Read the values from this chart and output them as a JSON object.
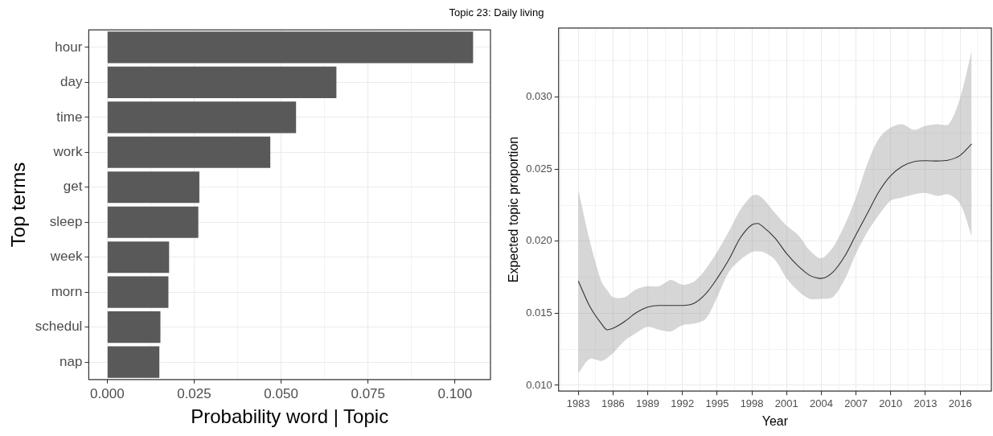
{
  "chart_data": [
    {
      "type": "bar",
      "title": "Topic 23: Daily living",
      "orientation": "horizontal",
      "xlabel": "Probability word | Topic",
      "ylabel": "Top terms",
      "categories": [
        "hour",
        "day",
        "time",
        "work",
        "get",
        "sleep",
        "week",
        "morn",
        "schedul",
        "nap"
      ],
      "values": [
        0.1052,
        0.0659,
        0.0543,
        0.0469,
        0.0265,
        0.0262,
        0.0178,
        0.0176,
        0.0153,
        0.015
      ],
      "color": "#595959",
      "xlim": [
        -0.0053,
        0.1102
      ],
      "xticks": [
        {
          "value": 0,
          "label": "0.000"
        },
        {
          "value": 0.0125,
          "label": null
        },
        {
          "value": 0.025,
          "label": "0.025"
        },
        {
          "value": 0.0375,
          "label": null
        },
        {
          "value": 0.05,
          "label": "0.050"
        },
        {
          "value": 0.0625,
          "label": null
        },
        {
          "value": 0.075,
          "label": "0.075"
        },
        {
          "value": 0.0875,
          "label": null
        },
        {
          "value": 0.1,
          "label": "0.100"
        }
      ],
      "grid": true,
      "legend": false
    },
    {
      "type": "line",
      "xlabel": "Year",
      "ylabel": "Expected topic proportion",
      "x": [
        1983,
        1984,
        1985,
        1985.5,
        1986,
        1987,
        1988,
        1989,
        1990,
        1991,
        1992,
        1993,
        1994,
        1995,
        1996,
        1997,
        1998,
        1998.5,
        1999,
        2000,
        2001,
        2002,
        2003,
        2004,
        2005,
        2006,
        2007,
        2008,
        2009,
        2010,
        2011,
        2012,
        2013,
        2014,
        2015,
        2016,
        2017
      ],
      "series": [
        {
          "color": "#333333",
          "values": [
            0.01724,
            0.01547,
            0.01428,
            0.01385,
            0.01396,
            0.01443,
            0.01504,
            0.01543,
            0.01554,
            0.01554,
            0.01554,
            0.01569,
            0.01634,
            0.01742,
            0.01871,
            0.02023,
            0.02114,
            0.02124,
            0.02098,
            0.02023,
            0.01915,
            0.01828,
            0.01763,
            0.01742,
            0.01785,
            0.01893,
            0.02045,
            0.02196,
            0.02347,
            0.02455,
            0.0252,
            0.02552,
            0.02559,
            0.02557,
            0.02563,
            0.02596,
            0.02676
          ],
          "upper": [
            0.02358,
            0.02001,
            0.0172,
            0.0166,
            0.01612,
            0.01612,
            0.01666,
            0.01688,
            0.01688,
            0.01731,
            0.01698,
            0.0172,
            0.01806,
            0.01925,
            0.02066,
            0.02217,
            0.02315,
            0.0232,
            0.02293,
            0.02196,
            0.02109,
            0.02044,
            0.01936,
            0.01882,
            0.01958,
            0.02109,
            0.02304,
            0.02542,
            0.02715,
            0.0279,
            0.02812,
            0.02773,
            0.02801,
            0.02812,
            0.02812,
            0.02996,
            0.03324
          ],
          "lower": [
            0.01082,
            0.01184,
            0.01169,
            0.0119,
            0.01223,
            0.01309,
            0.01363,
            0.01406,
            0.01385,
            0.01374,
            0.01417,
            0.01428,
            0.01461,
            0.01612,
            0.01785,
            0.01871,
            0.01925,
            0.0193,
            0.01925,
            0.01871,
            0.01742,
            0.01655,
            0.01601,
            0.01601,
            0.01612,
            0.01731,
            0.01915,
            0.02066,
            0.02185,
            0.02282,
            0.02304,
            0.02325,
            0.02336,
            0.02315,
            0.02325,
            0.02261,
            0.02034
          ]
        }
      ],
      "xlim": [
        1981.3,
        2018.7
      ],
      "ylim": [
        0.0096,
        0.0348
      ],
      "xticks": [
        {
          "value": 1981.5,
          "label": null
        },
        1983,
        {
          "value": 1984.5,
          "label": null
        },
        1986,
        {
          "value": 1987.5,
          "label": null
        },
        1989,
        {
          "value": 1990.5,
          "label": null
        },
        1992,
        {
          "value": 1993.5,
          "label": null
        },
        1995,
        {
          "value": 1996.5,
          "label": null
        },
        1998,
        {
          "value": 1999.5,
          "label": null
        },
        2001,
        {
          "value": 2002.5,
          "label": null
        },
        2004,
        {
          "value": 2005.5,
          "label": null
        },
        2007,
        {
          "value": 2008.5,
          "label": null
        },
        2010,
        {
          "value": 2011.5,
          "label": null
        },
        2013,
        {
          "value": 2014.5,
          "label": null
        },
        2016,
        {
          "value": 2017.5,
          "label": null
        }
      ],
      "yticks": [
        {
          "value": 0.01,
          "label": "0.010"
        },
        {
          "value": 0.0125,
          "label": null
        },
        {
          "value": 0.015,
          "label": "0.015"
        },
        {
          "value": 0.0175,
          "label": null
        },
        {
          "value": 0.02,
          "label": "0.020"
        },
        {
          "value": 0.0225,
          "label": null
        },
        {
          "value": 0.025,
          "label": "0.025"
        },
        {
          "value": 0.0275,
          "label": null
        },
        {
          "value": 0.03,
          "label": "0.030"
        },
        {
          "value": 0.0325,
          "label": null
        }
      ],
      "grid": true,
      "legend": false
    }
  ]
}
